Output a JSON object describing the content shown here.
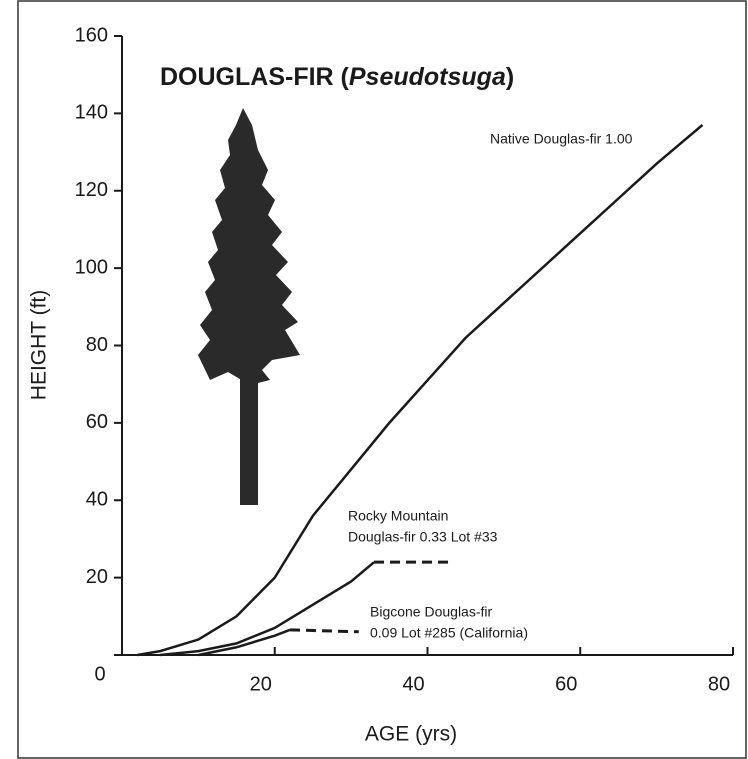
{
  "chart_data": {
    "type": "line",
    "title_parts": [
      "DOUGLAS-FIR (",
      "Pseudotsuga",
      ")"
    ],
    "x_label": "AGE (yrs)",
    "y_label": "HEIGHT (ft)",
    "xlim": [
      0,
      80
    ],
    "xticks": [
      0,
      20,
      40,
      60,
      80
    ],
    "ylim": [
      0,
      160
    ],
    "yticks": [
      0,
      20,
      40,
      60,
      80,
      100,
      120,
      140,
      160
    ],
    "grid": false,
    "series": [
      {
        "label": [
          "Native Douglas-fir 1.00"
        ],
        "color": "#1a1a1a",
        "segments": [
          {
            "dashed": false,
            "x": [
              2,
              5,
              10,
              15,
              20,
              25,
              30,
              35,
              40,
              45,
              50,
              55,
              60,
              65,
              70,
              76
            ],
            "values": [
              0,
              1,
              4,
              10,
              20,
              36,
              48,
              60,
              71,
              82,
              91,
              100,
              109,
              118,
              127,
              137
            ]
          }
        ]
      },
      {
        "label": [
          "Rocky Mountain",
          "Douglas-fir 0.33 Lot #33"
        ],
        "color": "#1a1a1a",
        "segments": [
          {
            "dashed": false,
            "x": [
              5,
              10,
              15,
              20,
              25,
              30,
              33
            ],
            "values": [
              0,
              1,
              3,
              7,
              13,
              19,
              24
            ]
          },
          {
            "dashed": true,
            "x": [
              33,
              43
            ],
            "values": [
              24,
              24
            ]
          }
        ]
      },
      {
        "label": [
          "Bigcone Douglas-fir",
          "0.09 Lot #285 (California)"
        ],
        "color": "#1a1a1a",
        "segments": [
          {
            "dashed": false,
            "x": [
              10,
              15,
              20,
              22
            ],
            "values": [
              0,
              2,
              5,
              6.5
            ]
          },
          {
            "dashed": true,
            "x": [
              22,
              31
            ],
            "values": [
              6.5,
              6
            ]
          }
        ]
      }
    ]
  }
}
